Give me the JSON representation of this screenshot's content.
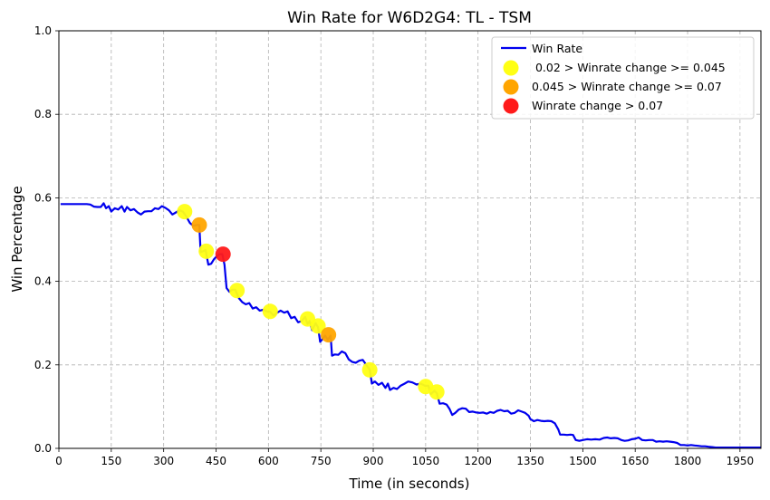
{
  "chart_data": {
    "type": "line",
    "title": "Win Rate for W6D2G4: TL - TSM",
    "xlabel": "Time (in seconds)",
    "ylabel": "Win Percentage",
    "xlim": [
      0,
      2010
    ],
    "ylim": [
      0,
      1.0
    ],
    "grid": true,
    "legend_position": "top-right",
    "x_ticks": [
      "0",
      "150",
      "300",
      "450",
      "600",
      "750",
      "900",
      "1050",
      "1200",
      "1350",
      "1500",
      "1650",
      "1800",
      "1950"
    ],
    "y_ticks": [
      "0.0",
      "0.2",
      "0.4",
      "0.6",
      "0.8",
      "1.0"
    ],
    "series": [
      {
        "name": "Win Rate",
        "color": "#0000ee",
        "points": [
          [
            5,
            0.585
          ],
          [
            20,
            0.585
          ],
          [
            40,
            0.585
          ],
          [
            60,
            0.585
          ],
          [
            80,
            0.585
          ],
          [
            90,
            0.584
          ],
          [
            100,
            0.579
          ],
          [
            110,
            0.578
          ],
          [
            120,
            0.578
          ],
          [
            128,
            0.587
          ],
          [
            135,
            0.575
          ],
          [
            143,
            0.58
          ],
          [
            150,
            0.567
          ],
          [
            160,
            0.575
          ],
          [
            170,
            0.572
          ],
          [
            180,
            0.58
          ],
          [
            188,
            0.567
          ],
          [
            195,
            0.578
          ],
          [
            205,
            0.57
          ],
          [
            215,
            0.573
          ],
          [
            225,
            0.565
          ],
          [
            235,
            0.56
          ],
          [
            245,
            0.567
          ],
          [
            255,
            0.568
          ],
          [
            265,
            0.568
          ],
          [
            275,
            0.575
          ],
          [
            285,
            0.573
          ],
          [
            295,
            0.58
          ],
          [
            305,
            0.576
          ],
          [
            315,
            0.57
          ],
          [
            325,
            0.56
          ],
          [
            335,
            0.565
          ],
          [
            345,
            0.57
          ],
          [
            355,
            0.567
          ],
          [
            365,
            0.555
          ],
          [
            375,
            0.54
          ],
          [
            385,
            0.533
          ],
          [
            395,
            0.535
          ],
          [
            402,
            0.535
          ],
          [
            406,
            0.47
          ],
          [
            412,
            0.472
          ],
          [
            420,
            0.475
          ],
          [
            428,
            0.44
          ],
          [
            436,
            0.442
          ],
          [
            444,
            0.453
          ],
          [
            452,
            0.46
          ],
          [
            460,
            0.465
          ],
          [
            468,
            0.465
          ],
          [
            474,
            0.44
          ],
          [
            480,
            0.384
          ],
          [
            488,
            0.375
          ],
          [
            496,
            0.38
          ],
          [
            505,
            0.38
          ],
          [
            515,
            0.36
          ],
          [
            525,
            0.35
          ],
          [
            535,
            0.345
          ],
          [
            545,
            0.348
          ],
          [
            555,
            0.335
          ],
          [
            565,
            0.338
          ],
          [
            575,
            0.33
          ],
          [
            585,
            0.332
          ],
          [
            595,
            0.328
          ],
          [
            605,
            0.327
          ],
          [
            615,
            0.318
          ],
          [
            625,
            0.325
          ],
          [
            635,
            0.33
          ],
          [
            645,
            0.325
          ],
          [
            655,
            0.328
          ],
          [
            665,
            0.312
          ],
          [
            675,
            0.315
          ],
          [
            685,
            0.302
          ],
          [
            695,
            0.305
          ],
          [
            705,
            0.315
          ],
          [
            712,
            0.298
          ],
          [
            718,
            0.305
          ],
          [
            725,
            0.283
          ],
          [
            735,
            0.3
          ],
          [
            742,
            0.29
          ],
          [
            748,
            0.255
          ],
          [
            755,
            0.262
          ],
          [
            762,
            0.27
          ],
          [
            770,
            0.26
          ],
          [
            778,
            0.27
          ],
          [
            782,
            0.222
          ],
          [
            790,
            0.225
          ],
          [
            800,
            0.224
          ],
          [
            810,
            0.232
          ],
          [
            820,
            0.228
          ],
          [
            830,
            0.213
          ],
          [
            840,
            0.207
          ],
          [
            850,
            0.205
          ],
          [
            860,
            0.21
          ],
          [
            870,
            0.212
          ],
          [
            880,
            0.2
          ],
          [
            890,
            0.188
          ],
          [
            896,
            0.155
          ],
          [
            905,
            0.16
          ],
          [
            915,
            0.152
          ],
          [
            925,
            0.157
          ],
          [
            935,
            0.145
          ],
          [
            942,
            0.155
          ],
          [
            948,
            0.14
          ],
          [
            958,
            0.145
          ],
          [
            968,
            0.142
          ],
          [
            978,
            0.15
          ],
          [
            990,
            0.155
          ],
          [
            1000,
            0.16
          ],
          [
            1012,
            0.158
          ],
          [
            1024,
            0.153
          ],
          [
            1036,
            0.155
          ],
          [
            1048,
            0.15
          ],
          [
            1058,
            0.15
          ],
          [
            1065,
            0.13
          ],
          [
            1075,
            0.138
          ],
          [
            1082,
            0.132
          ],
          [
            1090,
            0.107
          ],
          [
            1100,
            0.108
          ],
          [
            1110,
            0.105
          ],
          [
            1118,
            0.095
          ],
          [
            1126,
            0.08
          ],
          [
            1135,
            0.085
          ],
          [
            1145,
            0.093
          ],
          [
            1155,
            0.096
          ],
          [
            1165,
            0.095
          ],
          [
            1175,
            0.087
          ],
          [
            1185,
            0.088
          ],
          [
            1195,
            0.086
          ],
          [
            1205,
            0.085
          ],
          [
            1215,
            0.086
          ],
          [
            1225,
            0.083
          ],
          [
            1235,
            0.087
          ],
          [
            1245,
            0.085
          ],
          [
            1255,
            0.09
          ],
          [
            1265,
            0.092
          ],
          [
            1275,
            0.089
          ],
          [
            1285,
            0.09
          ],
          [
            1295,
            0.083
          ],
          [
            1305,
            0.085
          ],
          [
            1315,
            0.091
          ],
          [
            1325,
            0.088
          ],
          [
            1335,
            0.085
          ],
          [
            1345,
            0.078
          ],
          [
            1350,
            0.07
          ],
          [
            1360,
            0.065
          ],
          [
            1370,
            0.068
          ],
          [
            1380,
            0.066
          ],
          [
            1390,
            0.065
          ],
          [
            1400,
            0.066
          ],
          [
            1410,
            0.065
          ],
          [
            1420,
            0.06
          ],
          [
            1430,
            0.045
          ],
          [
            1435,
            0.033
          ],
          [
            1445,
            0.033
          ],
          [
            1455,
            0.032
          ],
          [
            1465,
            0.033
          ],
          [
            1472,
            0.032
          ],
          [
            1480,
            0.02
          ],
          [
            1490,
            0.018
          ],
          [
            1500,
            0.02
          ],
          [
            1512,
            0.022
          ],
          [
            1524,
            0.021
          ],
          [
            1536,
            0.022
          ],
          [
            1548,
            0.021
          ],
          [
            1560,
            0.025
          ],
          [
            1570,
            0.026
          ],
          [
            1580,
            0.024
          ],
          [
            1590,
            0.025
          ],
          [
            1600,
            0.024
          ],
          [
            1610,
            0.02
          ],
          [
            1620,
            0.018
          ],
          [
            1630,
            0.019
          ],
          [
            1640,
            0.022
          ],
          [
            1650,
            0.023
          ],
          [
            1660,
            0.026
          ],
          [
            1670,
            0.02
          ],
          [
            1680,
            0.019
          ],
          [
            1690,
            0.02
          ],
          [
            1700,
            0.02
          ],
          [
            1710,
            0.016
          ],
          [
            1720,
            0.017
          ],
          [
            1730,
            0.016
          ],
          [
            1740,
            0.017
          ],
          [
            1750,
            0.016
          ],
          [
            1760,
            0.015
          ],
          [
            1770,
            0.013
          ],
          [
            1780,
            0.008
          ],
          [
            1790,
            0.008
          ],
          [
            1800,
            0.007
          ],
          [
            1810,
            0.008
          ],
          [
            1820,
            0.007
          ],
          [
            1830,
            0.006
          ],
          [
            1840,
            0.005
          ],
          [
            1850,
            0.005
          ],
          [
            1860,
            0.004
          ],
          [
            1870,
            0.003
          ],
          [
            1880,
            0.002
          ],
          [
            1900,
            0.002
          ],
          [
            1920,
            0.002
          ],
          [
            1940,
            0.002
          ],
          [
            1960,
            0.002
          ],
          [
            1980,
            0.002
          ],
          [
            2000,
            0.002
          ],
          [
            2010,
            0.002
          ]
        ]
      }
    ],
    "highlights": [
      {
        "name": " 0.02 > Winrate change >= 0.045",
        "color": "#ffff14",
        "points": [
          [
            360,
            0.567
          ],
          [
            422,
            0.472
          ],
          [
            510,
            0.378
          ],
          [
            605,
            0.328
          ],
          [
            712,
            0.31
          ],
          [
            742,
            0.293
          ],
          [
            890,
            0.188
          ],
          [
            1050,
            0.148
          ],
          [
            1082,
            0.135
          ]
        ]
      },
      {
        "name": "0.045 > Winrate change >= 0.07",
        "color": "#ffa500",
        "points": [
          [
            402,
            0.535
          ],
          [
            772,
            0.272
          ]
        ]
      },
      {
        "name": "Winrate change > 0.07",
        "color": "#ff1a1a",
        "points": [
          [
            470,
            0.465
          ]
        ]
      }
    ]
  }
}
